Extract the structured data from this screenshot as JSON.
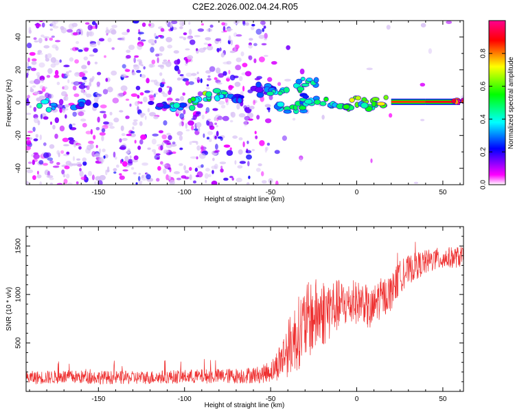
{
  "figure_title": "C2E2.2026.002.04.24.R05",
  "chart_data": [
    {
      "type": "heatmap",
      "title": "C2E2.2026.002.04.24.R05",
      "xlabel": "Height of straight line (km)",
      "ylabel": "Frequency (Hz)",
      "xlim": [
        -192,
        62
      ],
      "ylim": [
        -50,
        50
      ],
      "xticks": [
        -150,
        -100,
        -50,
        0,
        50
      ],
      "yticks": [
        -40,
        -20,
        0,
        20,
        40
      ],
      "colorbar": {
        "label": "Normalized spectral amplitude",
        "range": [
          0,
          1
        ],
        "ticks": [
          0.0,
          0.2,
          0.4,
          0.6,
          0.8
        ],
        "tick_labels": [
          "0.0",
          "0.2",
          "0.4",
          "0.6",
          "0.8"
        ],
        "colors": [
          "#ffffff",
          "#ff00ff",
          "#0000ff",
          "#00ffff",
          "#00ff00",
          "#ffff00",
          "#ff0000"
        ]
      },
      "ridge": [
        {
          "x": -178,
          "y": -2,
          "a": 0.45
        },
        {
          "x": -160,
          "y": -1,
          "a": 0.2
        },
        {
          "x": -115,
          "y": -2,
          "a": 0.25
        },
        {
          "x": -105,
          "y": -2,
          "a": 0.35
        },
        {
          "x": -95,
          "y": 1,
          "a": 0.4
        },
        {
          "x": -85,
          "y": 4,
          "a": 0.4
        },
        {
          "x": -80,
          "y": 5,
          "a": 0.45
        },
        {
          "x": -70,
          "y": 3,
          "a": 0.25
        },
        {
          "x": -55,
          "y": 8,
          "a": 0.25
        },
        {
          "x": -50,
          "y": 9,
          "a": 0.25
        },
        {
          "x": -45,
          "y": 6,
          "a": 0.4
        },
        {
          "x": -35,
          "y": 10,
          "a": 0.45
        },
        {
          "x": -28,
          "y": 12,
          "a": 0.35
        },
        {
          "x": -45,
          "y": -3,
          "a": 0.4
        },
        {
          "x": -38,
          "y": -4,
          "a": 0.45
        },
        {
          "x": -30,
          "y": 0,
          "a": 0.4
        },
        {
          "x": -25,
          "y": 2,
          "a": 0.35
        },
        {
          "x": -15,
          "y": -1,
          "a": 0.45
        },
        {
          "x": -5,
          "y": -2,
          "a": 0.45
        },
        {
          "x": 0,
          "y": 0,
          "a": 0.65
        },
        {
          "x": 8,
          "y": -1,
          "a": 0.5
        },
        {
          "x": 15,
          "y": 0,
          "a": 0.65
        },
        {
          "x": 20,
          "y": 0.5,
          "a": 0.85
        },
        {
          "x": 40,
          "y": 0.5,
          "a": 0.9
        },
        {
          "x": 60,
          "y": 0.5,
          "a": 0.9
        }
      ]
    },
    {
      "type": "line",
      "xlabel": "Height of straight line (km)",
      "ylabel": "SNR (10 * v/v)",
      "xlim": [
        -192,
        62
      ],
      "ylim": [
        0,
        1700
      ],
      "xticks": [
        -150,
        -100,
        -50,
        0,
        50
      ],
      "yticks": [
        500,
        1000,
        1500
      ],
      "series": [
        {
          "name": "SNR",
          "color": "#ee3030",
          "x": [
            -192,
            -170,
            -150,
            -130,
            -110,
            -90,
            -70,
            -55,
            -48,
            -42,
            -38,
            -34,
            -30,
            -26,
            -22,
            -18,
            -15,
            -12,
            -8,
            -4,
            0,
            4,
            8,
            12,
            16,
            20,
            25,
            30,
            35,
            40,
            45,
            50,
            55,
            62
          ],
          "mean": [
            140,
            150,
            145,
            140,
            150,
            155,
            160,
            175,
            230,
            380,
            500,
            600,
            700,
            760,
            800,
            830,
            860,
            880,
            900,
            900,
            920,
            930,
            800,
            940,
            980,
            1020,
            1180,
            1250,
            1300,
            1330,
            1360,
            1370,
            1380,
            1390
          ],
          "spread": [
            70,
            70,
            70,
            70,
            70,
            75,
            80,
            90,
            130,
            250,
            330,
            380,
            400,
            400,
            380,
            350,
            320,
            280,
            250,
            230,
            220,
            210,
            230,
            220,
            200,
            190,
            170,
            150,
            140,
            130,
            120,
            120,
            110,
            110
          ]
        }
      ]
    }
  ]
}
